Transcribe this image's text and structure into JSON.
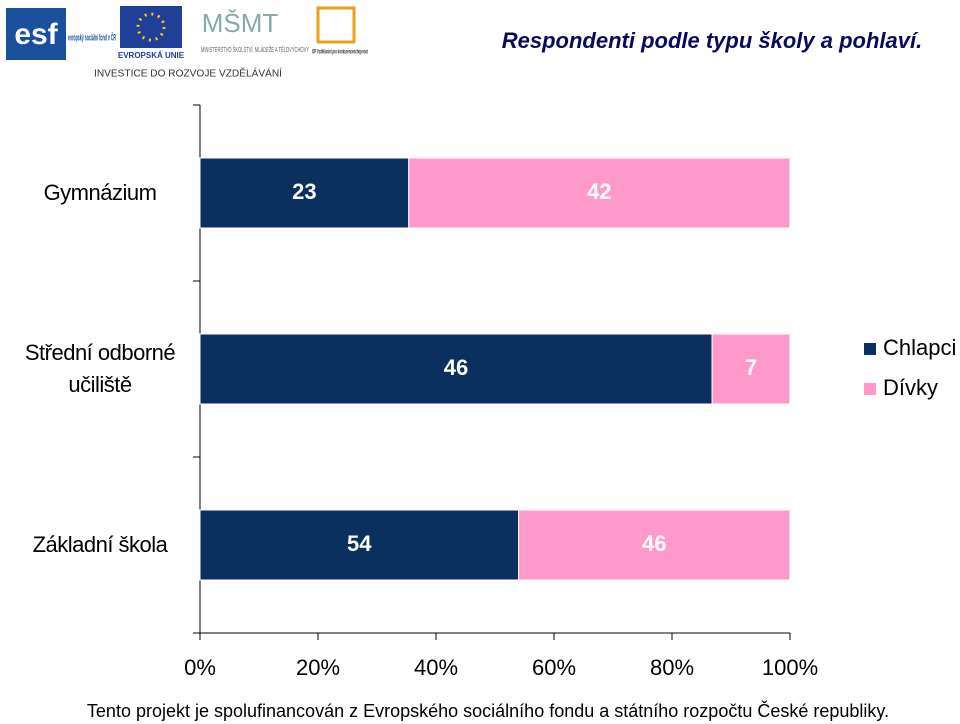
{
  "header": {
    "logos": [
      "evropský sociální fond v ČR",
      "EVROPSKÁ UNIE",
      "MINISTERSTVO ŠKOLSTVÍ, MLÁDEŽE A TĚLOVÝCHOVY",
      "OP Vzdělávání pro konkurenceschopnost"
    ],
    "slogan": "INVESTICE DO ROZVOJE VZDĚLÁVÁNÍ"
  },
  "chart_data": {
    "type": "bar",
    "orientation": "horizontal",
    "stacking": "percent",
    "title": "Respondenti podle typu školy a pohlaví.",
    "categories": [
      "Gymnázium",
      "Střední odborné učiliště",
      "Základní škola"
    ],
    "series": [
      {
        "name": "Chlapci",
        "color": "#0b2f5e",
        "values": [
          23,
          46,
          54
        ]
      },
      {
        "name": "Dívky",
        "color": "#ff99cc",
        "values": [
          42,
          7,
          46
        ]
      }
    ],
    "xlim": [
      0,
      100
    ],
    "xticks": [
      {
        "value": 0,
        "label": "0%"
      },
      {
        "value": 20,
        "label": "20%"
      },
      {
        "value": 40,
        "label": "40%"
      },
      {
        "value": 60,
        "label": "60%"
      },
      {
        "value": 80,
        "label": "80%"
      },
      {
        "value": 100,
        "label": "100%"
      }
    ],
    "legend": "right"
  },
  "footer": "Tento projekt je spolufinancován z Evropského sociálního fondu a státního rozpočtu České republiky."
}
